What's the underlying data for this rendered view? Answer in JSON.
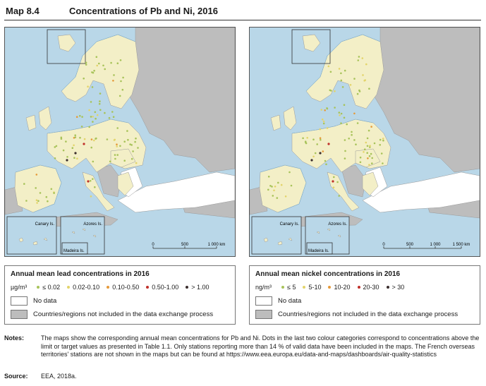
{
  "header": {
    "map_number": "Map 8.4",
    "title": "Concentrations of Pb and Ni, 2016"
  },
  "colors": {
    "sea": "#b9d7e8",
    "land_included": "#f3efc7",
    "land_excluded": "#bdbdbd",
    "no_data": "#ffffff",
    "border": "#9a9a9a"
  },
  "maps": [
    {
      "pollutant": "Pb",
      "insets": {
        "canary": "Canary Is.",
        "azores": "Azores Is.",
        "madeira": "Madeira Is."
      },
      "scale": {
        "labels": [
          "0",
          "500",
          "1 000 km"
        ]
      }
    },
    {
      "pollutant": "Ni",
      "insets": {
        "canary": "Canary Is.",
        "azores": "Azores Is.",
        "madeira": "Madeira Is."
      },
      "scale": {
        "labels": [
          "0",
          "500",
          "1 000",
          "1 500 km"
        ]
      }
    }
  ],
  "legend_lead": {
    "title": "Annual mean lead concentrations in 2016",
    "unit": "µg/m³",
    "classes": [
      {
        "label": "≤ 0.02",
        "color": "#a8c35a"
      },
      {
        "label": "0.02-0.10",
        "color": "#e3d46a"
      },
      {
        "label": "0.10-0.50",
        "color": "#e69a3a"
      },
      {
        "label": "0.50-1.00",
        "color": "#c0302a"
      },
      {
        "label": "> 1.00",
        "color": "#3a2d2d"
      }
    ],
    "no_data": "No data",
    "excluded": "Countries/regions not included in the data exchange process"
  },
  "legend_nickel": {
    "title": "Annual mean nickel concentrations in 2016",
    "unit": "ng/m³",
    "classes": [
      {
        "label": "≤ 5",
        "color": "#a8c35a"
      },
      {
        "label": "5-10",
        "color": "#e3d46a"
      },
      {
        "label": "10-20",
        "color": "#e69a3a"
      },
      {
        "label": "20-30",
        "color": "#c0302a"
      },
      {
        "label": "> 30",
        "color": "#3a2d2d"
      }
    ],
    "no_data": "No data",
    "excluded": "Countries/regions not included in the data exchange process"
  },
  "notes": {
    "label": "Notes:",
    "text": "The maps show the corresponding annual mean concentrations for Pb and Ni. Dots in the last two colour categories correspond to concentrations above the limit or target values as presented in Table 1.1. Only stations reporting more than 14 % of valid data have been included in the maps. The French overseas territories' stations are not shown in the maps but can be found at https://www.eea.europa.eu/data-and-maps/dashboards/air-quality-statistics"
  },
  "source": {
    "label": "Source:",
    "text": "EEA, 2018a."
  }
}
